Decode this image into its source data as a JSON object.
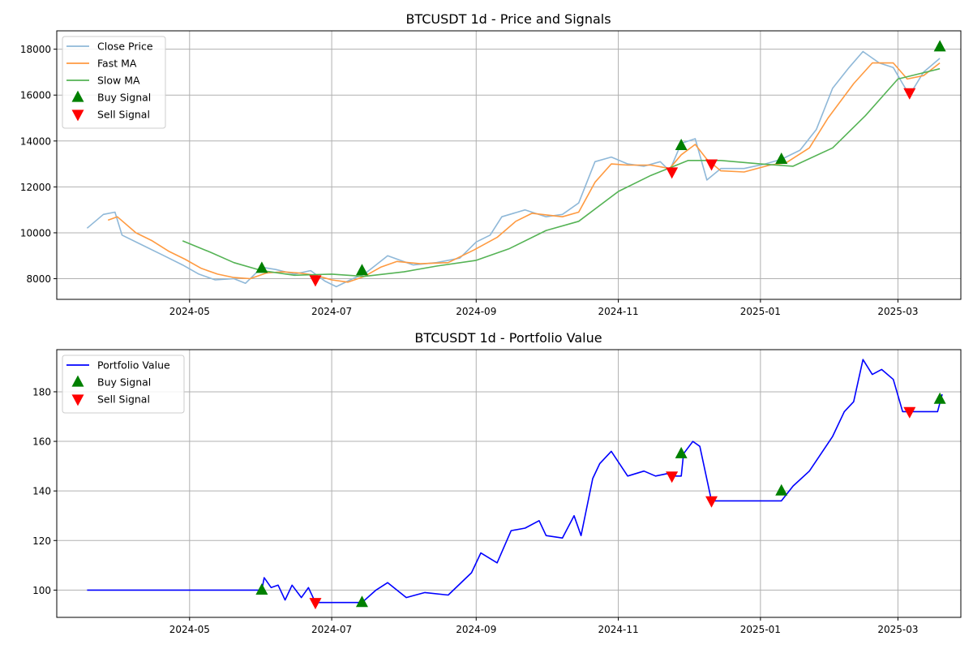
{
  "chart_data": [
    {
      "type": "line",
      "title": "BTCUSDT 1d - Price and Signals",
      "xlabel": "",
      "ylabel": "",
      "x_ticks": [
        "2024-05",
        "2024-07",
        "2024-09",
        "2024-11",
        "2025-01",
        "2025-03"
      ],
      "y_ticks": [
        "8000",
        "10000",
        "12000",
        "14000",
        "16000",
        "18000"
      ],
      "xlim": [
        "2024-03-05",
        "2025-03-28"
      ],
      "ylim": [
        7100,
        18800
      ],
      "grid": true,
      "legend_position": "top-left",
      "legend": [
        "Close Price",
        "Fast MA",
        "Slow MA",
        "Buy Signal",
        "Sell Signal"
      ],
      "series": [
        {
          "name": "Close Price",
          "color": "#8fb8d8",
          "points": [
            [
              "2024-03-18",
              10200
            ],
            [
              "2024-03-25",
              10800
            ],
            [
              "2024-03-30",
              10900
            ],
            [
              "2024-04-02",
              9900
            ],
            [
              "2024-04-10",
              9500
            ],
            [
              "2024-04-20",
              9000
            ],
            [
              "2024-04-28",
              8600
            ],
            [
              "2024-05-05",
              8200
            ],
            [
              "2024-05-12",
              7950
            ],
            [
              "2024-05-20",
              8000
            ],
            [
              "2024-05-25",
              7800
            ],
            [
              "2024-06-01",
              8500
            ],
            [
              "2024-06-07",
              8400
            ],
            [
              "2024-06-15",
              8200
            ],
            [
              "2024-06-22",
              8350
            ],
            [
              "2024-06-28",
              7900
            ],
            [
              "2024-07-03",
              7650
            ],
            [
              "2024-07-10",
              8000
            ],
            [
              "2024-07-15",
              8200
            ],
            [
              "2024-07-20",
              8600
            ],
            [
              "2024-07-25",
              9000
            ],
            [
              "2024-08-05",
              8600
            ],
            [
              "2024-08-15",
              8700
            ],
            [
              "2024-08-25",
              8900
            ],
            [
              "2024-09-01",
              9600
            ],
            [
              "2024-09-07",
              9900
            ],
            [
              "2024-09-12",
              10700
            ],
            [
              "2024-09-22",
              11000
            ],
            [
              "2024-10-01",
              10700
            ],
            [
              "2024-10-08",
              10800
            ],
            [
              "2024-10-15",
              11300
            ],
            [
              "2024-10-22",
              13100
            ],
            [
              "2024-10-29",
              13300
            ],
            [
              "2024-11-05",
              13000
            ],
            [
              "2024-11-12",
              12900
            ],
            [
              "2024-11-19",
              13100
            ],
            [
              "2024-11-23",
              12700
            ],
            [
              "2024-11-28",
              13900
            ],
            [
              "2024-12-04",
              14100
            ],
            [
              "2024-12-09",
              12300
            ],
            [
              "2024-12-15",
              12800
            ],
            [
              "2024-12-25",
              12800
            ],
            [
              "2025-01-03",
              13000
            ],
            [
              "2025-01-10",
              13200
            ],
            [
              "2025-01-18",
              13600
            ],
            [
              "2025-01-25",
              14500
            ],
            [
              "2025-02-01",
              16300
            ],
            [
              "2025-02-08",
              17200
            ],
            [
              "2025-02-14",
              17900
            ],
            [
              "2025-02-21",
              17400
            ],
            [
              "2025-02-27",
              17200
            ],
            [
              "2025-03-03",
              16500
            ],
            [
              "2025-03-06",
              16000
            ],
            [
              "2025-03-12",
              17000
            ],
            [
              "2025-03-19",
              17600
            ]
          ]
        },
        {
          "name": "Fast MA",
          "color": "#ff9a40",
          "points": [
            [
              "2024-03-27",
              10550
            ],
            [
              "2024-03-31",
              10700
            ],
            [
              "2024-04-08",
              10000
            ],
            [
              "2024-04-15",
              9650
            ],
            [
              "2024-04-22",
              9200
            ],
            [
              "2024-04-29",
              8850
            ],
            [
              "2024-05-06",
              8450
            ],
            [
              "2024-05-13",
              8200
            ],
            [
              "2024-05-20",
              8050
            ],
            [
              "2024-05-27",
              8000
            ],
            [
              "2024-06-03",
              8250
            ],
            [
              "2024-06-10",
              8300
            ],
            [
              "2024-06-17",
              8250
            ],
            [
              "2024-06-24",
              8150
            ],
            [
              "2024-07-01",
              7950
            ],
            [
              "2024-07-08",
              7850
            ],
            [
              "2024-07-15",
              8100
            ],
            [
              "2024-07-22",
              8500
            ],
            [
              "2024-07-29",
              8750
            ],
            [
              "2024-08-08",
              8650
            ],
            [
              "2024-08-20",
              8700
            ],
            [
              "2024-08-31",
              9250
            ],
            [
              "2024-09-10",
              9800
            ],
            [
              "2024-09-18",
              10500
            ],
            [
              "2024-09-25",
              10850
            ],
            [
              "2024-10-08",
              10700
            ],
            [
              "2024-10-15",
              10900
            ],
            [
              "2024-10-22",
              12200
            ],
            [
              "2024-10-29",
              13000
            ],
            [
              "2024-11-05",
              12950
            ],
            [
              "2024-11-15",
              12950
            ],
            [
              "2024-11-23",
              12800
            ],
            [
              "2024-11-28",
              13400
            ],
            [
              "2024-12-04",
              13850
            ],
            [
              "2024-12-09",
              13200
            ],
            [
              "2024-12-15",
              12700
            ],
            [
              "2024-12-25",
              12650
            ],
            [
              "2025-01-05",
              12950
            ],
            [
              "2025-01-12",
              13050
            ],
            [
              "2025-01-22",
              13700
            ],
            [
              "2025-01-30",
              15000
            ],
            [
              "2025-02-10",
              16500
            ],
            [
              "2025-02-18",
              17400
            ],
            [
              "2025-02-27",
              17400
            ],
            [
              "2025-03-05",
              16700
            ],
            [
              "2025-03-12",
              16850
            ],
            [
              "2025-03-19",
              17400
            ]
          ]
        },
        {
          "name": "Slow MA",
          "color": "#55b355",
          "points": [
            [
              "2024-04-28",
              9650
            ],
            [
              "2024-05-10",
              9150
            ],
            [
              "2024-05-20",
              8700
            ],
            [
              "2024-06-01",
              8350
            ],
            [
              "2024-06-15",
              8150
            ],
            [
              "2024-07-01",
              8200
            ],
            [
              "2024-07-15",
              8100
            ],
            [
              "2024-08-01",
              8300
            ],
            [
              "2024-08-15",
              8550
            ],
            [
              "2024-09-01",
              8800
            ],
            [
              "2024-09-15",
              9300
            ],
            [
              "2024-10-01",
              10100
            ],
            [
              "2024-10-15",
              10500
            ],
            [
              "2024-11-01",
              11800
            ],
            [
              "2024-11-15",
              12500
            ],
            [
              "2024-12-01",
              13150
            ],
            [
              "2024-12-15",
              13150
            ],
            [
              "2025-01-01",
              13000
            ],
            [
              "2025-01-15",
              12900
            ],
            [
              "2025-02-01",
              13700
            ],
            [
              "2025-02-15",
              15100
            ],
            [
              "2025-03-01",
              16700
            ],
            [
              "2025-03-19",
              17150
            ]
          ]
        }
      ],
      "markers": [
        {
          "name": "Buy Signal",
          "color": "#008000",
          "shape": "triangle-up",
          "points": [
            [
              "2024-06-01",
              8450
            ],
            [
              "2024-07-14",
              8350
            ],
            [
              "2024-11-28",
              13800
            ],
            [
              "2025-01-10",
              13200
            ],
            [
              "2025-03-19",
              18100
            ]
          ]
        },
        {
          "name": "Sell Signal",
          "color": "#ff0000",
          "shape": "triangle-down",
          "points": [
            [
              "2024-06-24",
              7950
            ],
            [
              "2024-11-24",
              12650
            ],
            [
              "2024-12-11",
              13000
            ],
            [
              "2025-03-06",
              16100
            ]
          ]
        }
      ]
    },
    {
      "type": "line",
      "title": "BTCUSDT 1d - Portfolio Value",
      "xlabel": "",
      "ylabel": "",
      "x_ticks": [
        "2024-05",
        "2024-07",
        "2024-09",
        "2024-11",
        "2025-01",
        "2025-03"
      ],
      "y_ticks": [
        "100",
        "120",
        "140",
        "160",
        "180"
      ],
      "xlim": [
        "2024-03-05",
        "2025-03-28"
      ],
      "ylim": [
        89,
        197
      ],
      "grid": true,
      "legend_position": "top-left",
      "legend": [
        "Portfolio Value",
        "Buy Signal",
        "Sell Signal"
      ],
      "series": [
        {
          "name": "Portfolio Value",
          "color": "#0000ff",
          "points": [
            [
              "2024-03-18",
              100
            ],
            [
              "2024-06-01",
              100
            ],
            [
              "2024-06-02",
              105
            ],
            [
              "2024-06-05",
              101
            ],
            [
              "2024-06-08",
              102
            ],
            [
              "2024-06-11",
              96
            ],
            [
              "2024-06-14",
              102
            ],
            [
              "2024-06-18",
              97
            ],
            [
              "2024-06-21",
              101
            ],
            [
              "2024-06-24",
              95
            ],
            [
              "2024-07-14",
              95
            ],
            [
              "2024-07-20",
              100
            ],
            [
              "2024-07-25",
              103
            ],
            [
              "2024-08-02",
              97
            ],
            [
              "2024-08-10",
              99
            ],
            [
              "2024-08-20",
              98
            ],
            [
              "2024-08-30",
              107
            ],
            [
              "2024-09-03",
              115
            ],
            [
              "2024-09-10",
              111
            ],
            [
              "2024-09-16",
              124
            ],
            [
              "2024-09-22",
              125
            ],
            [
              "2024-09-28",
              128
            ],
            [
              "2024-10-01",
              122
            ],
            [
              "2024-10-08",
              121
            ],
            [
              "2024-10-13",
              130
            ],
            [
              "2024-10-16",
              122
            ],
            [
              "2024-10-21",
              145
            ],
            [
              "2024-10-24",
              151
            ],
            [
              "2024-10-29",
              156
            ],
            [
              "2024-11-05",
              146
            ],
            [
              "2024-11-12",
              148
            ],
            [
              "2024-11-17",
              146
            ],
            [
              "2024-11-22",
              147
            ],
            [
              "2024-11-24",
              146
            ],
            [
              "2024-11-28",
              146
            ],
            [
              "2024-11-29",
              155
            ],
            [
              "2024-12-03",
              160
            ],
            [
              "2024-12-06",
              158
            ],
            [
              "2024-12-11",
              136
            ],
            [
              "2025-01-10",
              136
            ],
            [
              "2025-01-15",
              142
            ],
            [
              "2025-01-22",
              148
            ],
            [
              "2025-02-01",
              162
            ],
            [
              "2025-02-06",
              172
            ],
            [
              "2025-02-10",
              176
            ],
            [
              "2025-02-14",
              193
            ],
            [
              "2025-02-18",
              187
            ],
            [
              "2025-02-22",
              189
            ],
            [
              "2025-02-27",
              185
            ],
            [
              "2025-03-03",
              172
            ],
            [
              "2025-03-06",
              172
            ],
            [
              "2025-03-18",
              172
            ],
            [
              "2025-03-20",
              179
            ]
          ]
        }
      ],
      "markers": [
        {
          "name": "Buy Signal",
          "color": "#008000",
          "shape": "triangle-up",
          "points": [
            [
              "2024-06-01",
              100
            ],
            [
              "2024-07-14",
              95
            ],
            [
              "2024-11-28",
              155
            ],
            [
              "2025-01-10",
              140
            ],
            [
              "2025-03-19",
              177
            ]
          ]
        },
        {
          "name": "Sell Signal",
          "color": "#ff0000",
          "shape": "triangle-down",
          "points": [
            [
              "2024-06-24",
              95
            ],
            [
              "2024-11-24",
              146
            ],
            [
              "2024-12-11",
              136
            ],
            [
              "2025-03-06",
              172
            ]
          ]
        }
      ]
    }
  ]
}
